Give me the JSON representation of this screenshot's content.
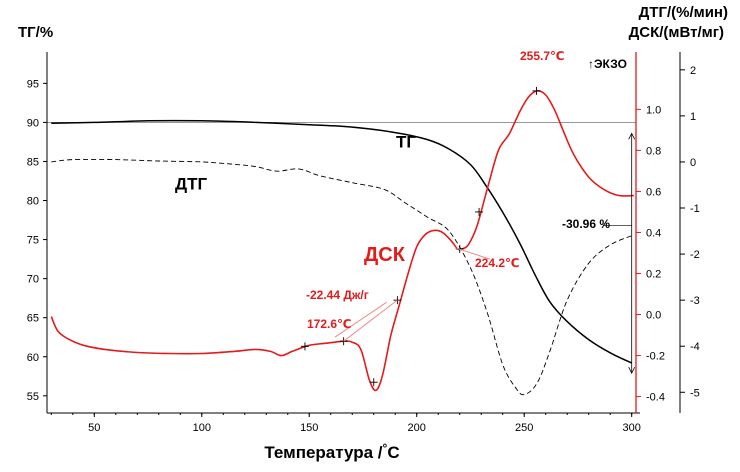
{
  "chart_data": {
    "type": "line",
    "title": "",
    "xlabel": "Температура /",
    "xlabel_unit": "°C",
    "xlim": [
      28,
      302
    ],
    "x_ticks": [
      50,
      100,
      150,
      200,
      250,
      300
    ],
    "axes": {
      "tg": {
        "label": "ТГ/%",
        "ylim": [
          52.8,
          98.5
        ],
        "ticks": [
          55,
          60,
          65,
          70,
          75,
          80,
          85,
          90,
          95
        ]
      },
      "dsc": {
        "label": "ДСК/(мВт/мг)",
        "ylim": [
          -0.48,
          1.26
        ],
        "ticks": [
          "-0.4",
          "-0.2",
          "0.0",
          "0.2",
          "0.4",
          "0.6",
          "0.8",
          "1.0"
        ]
      },
      "dtg": {
        "label": "ДТГ/(%/мин)",
        "ylim": [
          -5.45,
          2.3
        ],
        "ticks": [
          -5,
          -4,
          -3,
          -2,
          -1,
          0,
          1,
          2
        ]
      }
    },
    "exo_label": "↑ЭКЗО",
    "series": [
      {
        "name": "ТГ",
        "axis": "tg",
        "color": "#000000",
        "style": "solid",
        "points": [
          [
            30,
            89.9
          ],
          [
            50,
            90.0
          ],
          [
            75,
            90.2
          ],
          [
            100,
            90.2
          ],
          [
            125,
            90.0
          ],
          [
            150,
            89.7
          ],
          [
            170,
            89.4
          ],
          [
            190,
            88.7
          ],
          [
            205,
            87.8
          ],
          [
            215,
            86.6
          ],
          [
            225,
            84.6
          ],
          [
            232,
            82.0
          ],
          [
            240,
            78.5
          ],
          [
            248,
            74.5
          ],
          [
            255,
            70.5
          ],
          [
            262,
            67.0
          ],
          [
            270,
            64.5
          ],
          [
            280,
            62.2
          ],
          [
            290,
            60.5
          ],
          [
            300,
            59.2
          ]
        ]
      },
      {
        "name": "ДТГ",
        "axis": "dtg",
        "color": "#000000",
        "style": "dashed",
        "points": [
          [
            30,
            0.0
          ],
          [
            40,
            0.05
          ],
          [
            60,
            0.05
          ],
          [
            80,
            0.02
          ],
          [
            100,
            0.0
          ],
          [
            115,
            -0.05
          ],
          [
            125,
            -0.1
          ],
          [
            135,
            -0.2
          ],
          [
            145,
            -0.15
          ],
          [
            155,
            -0.3
          ],
          [
            170,
            -0.45
          ],
          [
            185,
            -0.6
          ],
          [
            195,
            -0.9
          ],
          [
            205,
            -1.2
          ],
          [
            215,
            -1.5
          ],
          [
            225,
            -2.3
          ],
          [
            233,
            -3.3
          ],
          [
            240,
            -4.4
          ],
          [
            246,
            -4.9
          ],
          [
            250,
            -5.05
          ],
          [
            256,
            -4.8
          ],
          [
            262,
            -4.1
          ],
          [
            270,
            -3.0
          ],
          [
            280,
            -2.2
          ],
          [
            290,
            -1.8
          ],
          [
            300,
            -1.6
          ]
        ]
      },
      {
        "name": "ДСК",
        "axis": "dsc",
        "color": "#e31b1b",
        "style": "solid",
        "points": [
          [
            30,
            -0.01
          ],
          [
            33,
            -0.08
          ],
          [
            38,
            -0.12
          ],
          [
            45,
            -0.15
          ],
          [
            55,
            -0.17
          ],
          [
            70,
            -0.185
          ],
          [
            85,
            -0.19
          ],
          [
            100,
            -0.19
          ],
          [
            115,
            -0.18
          ],
          [
            125,
            -0.17
          ],
          [
            132,
            -0.18
          ],
          [
            137,
            -0.2
          ],
          [
            142,
            -0.18
          ],
          [
            150,
            -0.15
          ],
          [
            158,
            -0.14
          ],
          [
            166,
            -0.13
          ],
          [
            170,
            -0.135
          ],
          [
            174,
            -0.17
          ],
          [
            178,
            -0.32
          ],
          [
            181,
            -0.37
          ],
          [
            184,
            -0.3
          ],
          [
            188,
            -0.1
          ],
          [
            192,
            0.05
          ],
          [
            196,
            0.2
          ],
          [
            200,
            0.33
          ],
          [
            204,
            0.39
          ],
          [
            208,
            0.41
          ],
          [
            212,
            0.4
          ],
          [
            216,
            0.36
          ],
          [
            219,
            0.32
          ],
          [
            221,
            0.32
          ],
          [
            224,
            0.34
          ],
          [
            228,
            0.43
          ],
          [
            233,
            0.62
          ],
          [
            238,
            0.8
          ],
          [
            243,
            0.88
          ],
          [
            248,
            0.99
          ],
          [
            252,
            1.06
          ],
          [
            256,
            1.09
          ],
          [
            260,
            1.07
          ],
          [
            264,
            1.0
          ],
          [
            268,
            0.9
          ],
          [
            273,
            0.78
          ],
          [
            280,
            0.67
          ],
          [
            287,
            0.61
          ],
          [
            294,
            0.58
          ],
          [
            301,
            0.58
          ]
        ]
      }
    ],
    "series_labels": [
      {
        "text": "ТГ",
        "x": 195,
        "axis": "tg",
        "y": 86.8,
        "color": "#000000"
      },
      {
        "text": "ДТГ",
        "x": 95,
        "axis": "dtg",
        "y": -0.6,
        "color": "#000000"
      },
      {
        "text": "ДСК",
        "x": 185,
        "axis": "dsc",
        "y": 0.26,
        "color": "#e31b1b"
      }
    ],
    "annotations": [
      {
        "text": "255.7℃",
        "color": "#e31b1b"
      },
      {
        "text": "224.2℃",
        "color": "#e31b1b"
      },
      {
        "text": "-22.44 Дж/г",
        "color": "#e31b1b"
      },
      {
        "text": "172.6℃",
        "color": "#e31b1b"
      },
      {
        "text": "-30.96 %",
        "color": "#000000"
      }
    ],
    "reference_line": {
      "axis": "tg",
      "y": 90
    },
    "mass_change_span": {
      "axis": "tg",
      "x": 300,
      "y_top": 88.6,
      "y_bottom": 57.9
    }
  }
}
